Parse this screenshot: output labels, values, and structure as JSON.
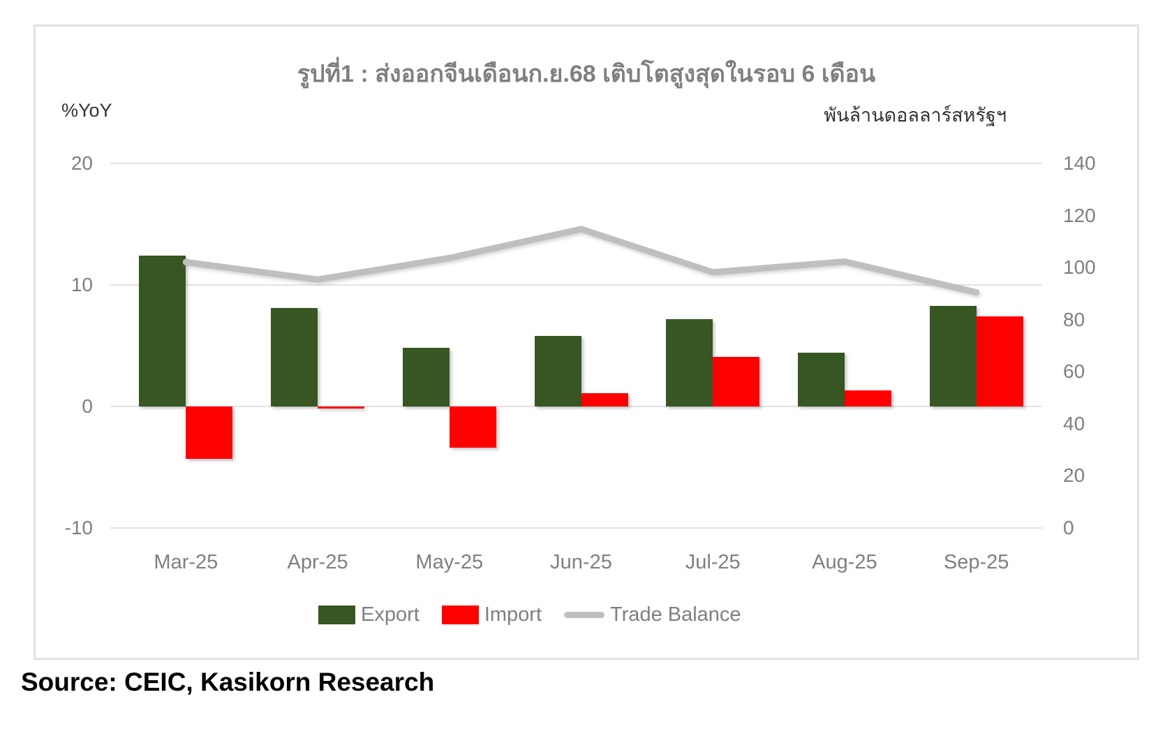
{
  "title": "รูปที่1 : ส่งออกจีนเดือนก.ย.68 เติบโตสูงสุดในรอบ 6 เดือน",
  "source_note": "Source: CEIC, Kasikorn Research",
  "axes": {
    "left_unit": "%YoY",
    "right_unit": "พันล้านดอลลาร์สหรัฐฯ"
  },
  "legend": [
    {
      "label": "Export",
      "color": "#375623",
      "type": "bar"
    },
    {
      "label": "Import",
      "color": "#ff0000",
      "type": "bar"
    },
    {
      "label": "Trade Balance",
      "color": "#bfbfbf",
      "type": "line"
    }
  ],
  "colors": {
    "export_green": "#375623",
    "import_red": "#ff0000",
    "trade_balance_gray": "#bfbfbf",
    "title_gray": "#7f7f7f",
    "gridline_gray": "#e2e2e2"
  },
  "chart_data": {
    "type": "bar",
    "subtype": "combo-bar-line-dual-axis",
    "title": "รูปที่1 : ส่งออกจีนเดือนก.ย.68 เติบโตสูงสุดในรอบ 6 เดือน",
    "categories": [
      "Mar-25",
      "Apr-25",
      "May-25",
      "Jun-25",
      "Jul-25",
      "Aug-25",
      "Sep-25"
    ],
    "series": [
      {
        "name": "Export",
        "type": "bar",
        "axis": "left",
        "color": "#375623",
        "values": [
          12.4,
          8.1,
          4.8,
          5.8,
          7.2,
          4.4,
          8.3
        ]
      },
      {
        "name": "Import",
        "type": "bar",
        "axis": "left",
        "color": "#ff0000",
        "values": [
          -4.3,
          -0.2,
          -3.4,
          1.1,
          4.1,
          1.3,
          7.4
        ]
      },
      {
        "name": "Trade Balance",
        "type": "line",
        "axis": "right",
        "color": "#bfbfbf",
        "values": [
          102.1,
          95.4,
          103.7,
          114.8,
          98.2,
          102.3,
          90.5
        ]
      }
    ],
    "left_axis": {
      "label": "%YoY",
      "min": -10,
      "max": 20,
      "ticks": [
        20,
        10,
        0,
        -10
      ]
    },
    "right_axis": {
      "label": "พันล้านดอลลาร์สหรัฐฯ",
      "min": 0,
      "max": 140,
      "ticks": [
        140,
        120,
        100,
        80,
        60,
        40,
        20,
        0
      ]
    },
    "grid": true,
    "legend_position": "bottom"
  }
}
